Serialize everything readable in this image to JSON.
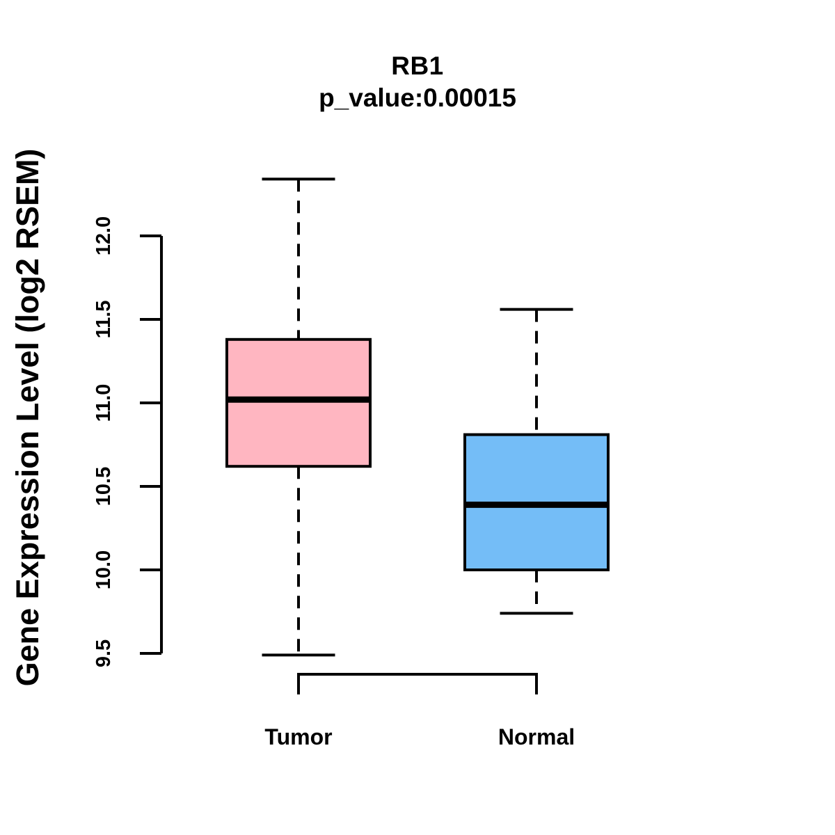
{
  "chart_data": {
    "type": "boxplot",
    "title": "RB1",
    "subtitle": "p_value:0.00015",
    "ylabel": "Gene Expression Level (log2 RSEM)",
    "xlabel": "",
    "axis_range": [
      9.5,
      12.0
    ],
    "yticks": [
      "9.5",
      "10.0",
      "10.5",
      "11.0",
      "11.5",
      "12.0"
    ],
    "grid": false,
    "legend": "none",
    "groups": [
      {
        "name": "Tumor",
        "color": "#FFB6C1",
        "border_color": "#000000",
        "whisker_low": 9.49,
        "q1": 10.62,
        "median": 11.02,
        "q3": 11.38,
        "whisker_high": 12.34
      },
      {
        "name": "Normal",
        "color": "#74BDF7",
        "border_color": "#000000",
        "whisker_low": 9.74,
        "q1": 10.0,
        "median": 10.39,
        "q3": 10.81,
        "whisker_high": 11.56
      }
    ],
    "comparison_bracket": {
      "from": "Tumor",
      "to": "Normal"
    }
  }
}
